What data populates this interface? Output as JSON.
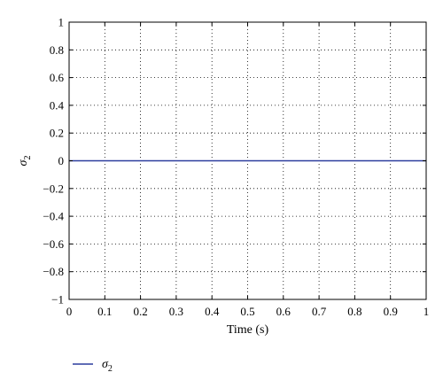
{
  "chart_data": {
    "type": "line",
    "title": "",
    "xlabel": "Time (s)",
    "ylabel": {
      "symbol": "σ",
      "subscript": "2"
    },
    "xlim": [
      0,
      1
    ],
    "ylim": [
      -1,
      1
    ],
    "x_ticks": [
      0,
      0.1,
      0.2,
      0.3,
      0.4,
      0.5,
      0.6,
      0.7,
      0.8,
      0.9,
      1
    ],
    "x_tick_labels": [
      "0",
      "0.1",
      "0.2",
      "0.3",
      "0.4",
      "0.5",
      "0.6",
      "0.7",
      "0.8",
      "0.9",
      "1"
    ],
    "y_ticks": [
      -1,
      -0.8,
      -0.6,
      -0.4,
      -0.2,
      0,
      0.2,
      0.4,
      0.6,
      0.8,
      1
    ],
    "y_tick_labels": [
      "−1",
      "−0.8",
      "−0.6",
      "−0.4",
      "−0.2",
      "0",
      "0.2",
      "0.4",
      "0.6",
      "0.8",
      "1"
    ],
    "grid": true,
    "legend_placement": "bottom-left",
    "series": [
      {
        "name": "σ2",
        "legend_symbol": "σ",
        "legend_subscript": "2",
        "color": "#2b3d9e",
        "x": [
          0,
          1
        ],
        "y": [
          0,
          0
        ]
      }
    ]
  }
}
